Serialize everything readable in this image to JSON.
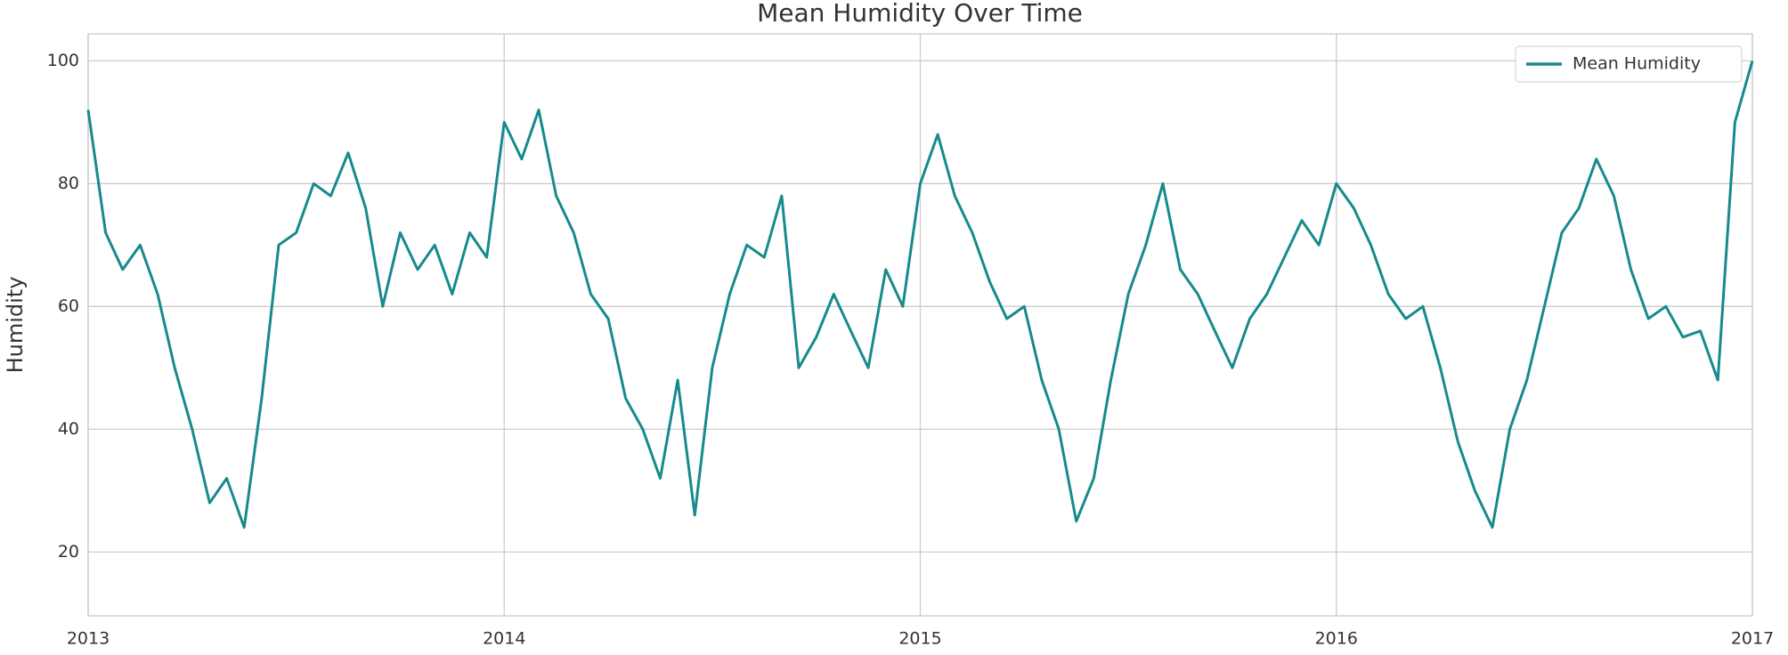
{
  "chart_data": {
    "type": "line",
    "title": "Mean Humidity Over Time",
    "ylabel": "Humidity",
    "xlim": [
      2013,
      2017
    ],
    "xticks": [
      2013,
      2014,
      2015,
      2016,
      2017
    ],
    "ylim": [
      9.6,
      104.4
    ],
    "yticks": [
      20,
      40,
      60,
      80,
      100
    ],
    "grid": true,
    "legend": "upper right",
    "x": [
      2013,
      2013.042,
      2013.083,
      2013.125,
      2013.167,
      2013.208,
      2013.25,
      2013.292,
      2013.333,
      2013.375,
      2013.417,
      2013.458,
      2013.5,
      2013.542,
      2013.583,
      2013.625,
      2013.667,
      2013.708,
      2013.75,
      2013.792,
      2013.833,
      2013.875,
      2013.917,
      2013.958,
      2014,
      2014.042,
      2014.083,
      2014.125,
      2014.167,
      2014.208,
      2014.25,
      2014.292,
      2014.333,
      2014.375,
      2014.417,
      2014.458,
      2014.5,
      2014.542,
      2014.583,
      2014.625,
      2014.667,
      2014.708,
      2014.75,
      2014.792,
      2014.833,
      2014.875,
      2014.917,
      2014.958,
      2015,
      2015.042,
      2015.083,
      2015.125,
      2015.167,
      2015.208,
      2015.25,
      2015.292,
      2015.333,
      2015.375,
      2015.417,
      2015.458,
      2015.5,
      2015.542,
      2015.583,
      2015.625,
      2015.667,
      2015.708,
      2015.75,
      2015.792,
      2015.833,
      2015.875,
      2015.917,
      2015.958,
      2016,
      2016.042,
      2016.083,
      2016.125,
      2016.167,
      2016.208,
      2016.25,
      2016.292,
      2016.333,
      2016.375,
      2016.417,
      2016.458,
      2016.5,
      2016.542,
      2016.583,
      2016.625,
      2016.667,
      2016.708,
      2016.75,
      2016.792,
      2016.833,
      2016.875,
      2016.917,
      2016.958,
      2017
    ],
    "series": [
      {
        "name": "Mean Humidity",
        "color": "#168a8c",
        "values": [
          92,
          72,
          66,
          70,
          62,
          50,
          40,
          28,
          32,
          24,
          45,
          70,
          72,
          80,
          78,
          85,
          76,
          60,
          72,
          66,
          70,
          62,
          72,
          68,
          90,
          84,
          92,
          78,
          72,
          62,
          58,
          45,
          40,
          32,
          48,
          26,
          50,
          62,
          70,
          68,
          78,
          50,
          55,
          62,
          56,
          50,
          66,
          60,
          80,
          88,
          78,
          72,
          64,
          58,
          60,
          48,
          40,
          25,
          32,
          48,
          62,
          70,
          80,
          66,
          62,
          56,
          50,
          58,
          62,
          68,
          74,
          70,
          80,
          76,
          70,
          62,
          58,
          60,
          50,
          38,
          30,
          24,
          40,
          48,
          60,
          72,
          76,
          84,
          78,
          66,
          58,
          60,
          55,
          56,
          48,
          90,
          100
        ]
      }
    ]
  }
}
